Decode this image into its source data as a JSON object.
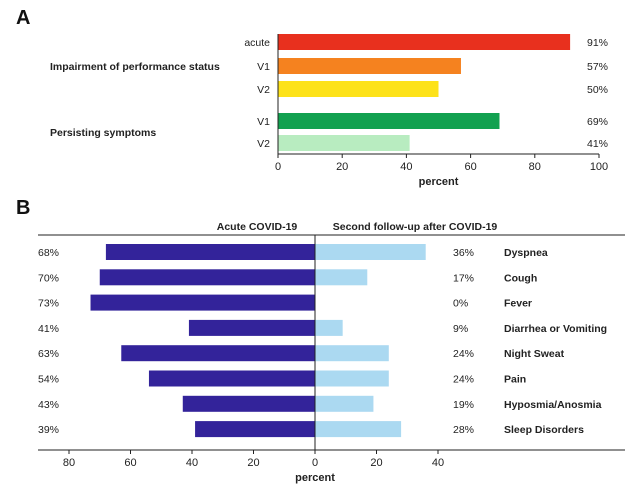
{
  "chart_data": [
    {
      "panel": "A",
      "type": "bar",
      "orientation": "horizontal",
      "xlabel": "percent",
      "xlim": [
        0,
        100
      ],
      "xticks": [
        0,
        20,
        40,
        60,
        80,
        100
      ],
      "groups": [
        {
          "label": "Impairment of performance status",
          "bars": [
            {
              "label": "acute",
              "value": 91,
              "value_label": "91%",
              "color": "#e8301e"
            },
            {
              "label": "V1",
              "value": 57,
              "value_label": "57%",
              "color": "#f5821f"
            },
            {
              "label": "V2",
              "value": 50,
              "value_label": "50%",
              "color": "#fde21a"
            }
          ]
        },
        {
          "label": "Persisting symptoms",
          "bars": [
            {
              "label": "V1",
              "value": 69,
              "value_label": "69%",
              "color": "#12a150"
            },
            {
              "label": "V2",
              "value": 41,
              "value_label": "41%",
              "color": "#b8ecc0"
            }
          ]
        }
      ]
    },
    {
      "panel": "B",
      "type": "bar",
      "orientation": "horizontal-diverging",
      "xlabel": "percent",
      "left_header": "Acute COVID-19",
      "right_header": "Second follow-up after COVID-19",
      "left_xlim": [
        0,
        80
      ],
      "right_xlim": [
        0,
        40
      ],
      "xticks_left": [
        80,
        60,
        40,
        20,
        0
      ],
      "xticks_right": [
        20,
        40
      ],
      "series": [
        {
          "name": "Acute COVID-19",
          "color": "#33239a",
          "values": [
            68,
            70,
            73,
            41,
            63,
            54,
            43,
            39
          ]
        },
        {
          "name": "Second follow-up after COVID-19",
          "color": "#abd9f1",
          "values": [
            36,
            17,
            0,
            9,
            24,
            24,
            19,
            28
          ]
        }
      ],
      "categories": [
        "Dyspnea",
        "Cough",
        "Fever",
        "Diarrhea or Vomiting",
        "Night Sweat",
        "Pain",
        "Hyposmia/Anosmia",
        "Sleep Disorders"
      ],
      "left_labels": [
        "68%",
        "70%",
        "73%",
        "41%",
        "63%",
        "54%",
        "43%",
        "39%"
      ],
      "right_labels": [
        "36%",
        "17%",
        "0%",
        "9%",
        "24%",
        "24%",
        "19%",
        "28%"
      ]
    }
  ],
  "panels": {
    "a_letter": "A",
    "b_letter": "B"
  }
}
